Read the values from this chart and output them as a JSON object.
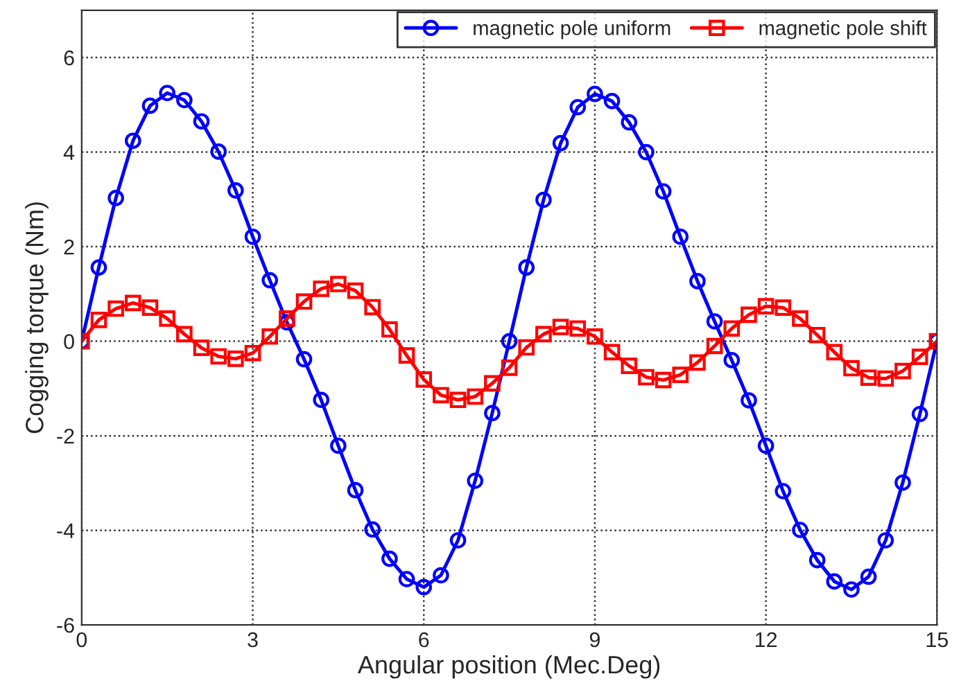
{
  "chart_data": {
    "type": "line",
    "xlabel": "Angular position (Mec.Deg)",
    "ylabel": "Cogging torque (Nm)",
    "x": [
      0,
      0.3,
      0.6,
      0.9,
      1.2,
      1.5,
      1.8,
      2.1,
      2.4,
      2.7,
      3.0,
      3.3,
      3.6,
      3.9,
      4.2,
      4.5,
      4.8,
      5.1,
      5.4,
      5.7,
      6.0,
      6.3,
      6.6,
      6.9,
      7.2,
      7.5,
      7.8,
      8.1,
      8.4,
      8.7,
      9.0,
      9.3,
      9.6,
      9.9,
      10.2,
      10.5,
      10.8,
      11.1,
      11.4,
      11.7,
      12.0,
      12.3,
      12.6,
      12.9,
      13.2,
      13.5,
      13.8,
      14.1,
      14.4,
      14.7,
      15.0
    ],
    "series": [
      {
        "name": "magnetic pole uniform",
        "color": "#0000ff",
        "marker": "circle",
        "values": [
          0,
          1.56,
          3.03,
          4.24,
          4.98,
          5.25,
          5.1,
          4.65,
          4.01,
          3.19,
          2.21,
          1.29,
          0.4,
          -0.38,
          -1.24,
          -2.21,
          -3.15,
          -3.98,
          -4.6,
          -5.03,
          -5.2,
          -4.95,
          -4.21,
          -2.95,
          -1.52,
          0,
          1.56,
          2.99,
          4.19,
          4.95,
          5.23,
          5.08,
          4.63,
          4.0,
          3.17,
          2.21,
          1.27,
          0.42,
          -0.4,
          -1.25,
          -2.21,
          -3.17,
          -3.99,
          -4.63,
          -5.08,
          -5.25,
          -4.98,
          -4.21,
          -2.99,
          -1.54,
          0
        ]
      },
      {
        "name": "magnetic pole shift",
        "color": "#ff0000",
        "marker": "square",
        "values": [
          0,
          0.45,
          0.69,
          0.81,
          0.71,
          0.48,
          0.15,
          -0.14,
          -0.32,
          -0.37,
          -0.25,
          0.1,
          0.48,
          0.84,
          1.11,
          1.21,
          1.07,
          0.72,
          0.25,
          -0.3,
          -0.81,
          -1.14,
          -1.24,
          -1.17,
          -0.89,
          -0.56,
          -0.13,
          0.15,
          0.3,
          0.27,
          0.1,
          -0.23,
          -0.52,
          -0.76,
          -0.82,
          -0.71,
          -0.45,
          -0.1,
          0.27,
          0.56,
          0.74,
          0.71,
          0.48,
          0.13,
          -0.23,
          -0.57,
          -0.77,
          -0.79,
          -0.63,
          -0.33,
          0
        ]
      }
    ],
    "xlim": [
      0,
      15
    ],
    "xticks": [
      0,
      3,
      6,
      9,
      12,
      15
    ],
    "ylim": [
      -6,
      7
    ],
    "yticks": [
      -6,
      -4,
      -2,
      0,
      2,
      4,
      6
    ],
    "grid": true,
    "legend": "top right",
    "line_style": "solid"
  }
}
